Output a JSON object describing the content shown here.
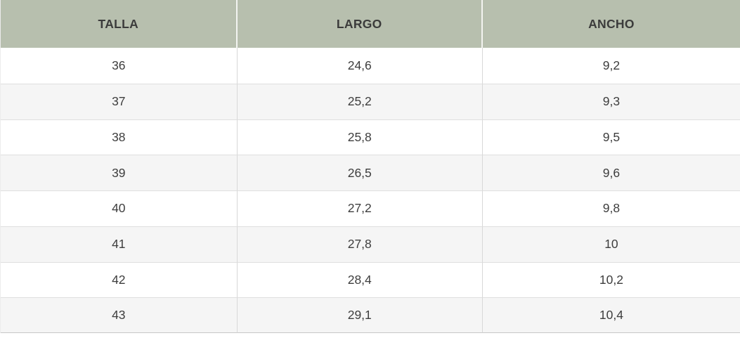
{
  "table": {
    "columns": [
      "TALLA",
      "LARGO",
      "ANCHO"
    ],
    "rows": [
      {
        "talla": "36",
        "largo": "24,6",
        "ancho": "9,2"
      },
      {
        "talla": "37",
        "largo": "25,2",
        "ancho": "9,3"
      },
      {
        "talla": "38",
        "largo": "25,8",
        "ancho": "9,5"
      },
      {
        "talla": "39",
        "largo": "26,5",
        "ancho": "9,6"
      },
      {
        "talla": "40",
        "largo": "27,2",
        "ancho": "9,8"
      },
      {
        "talla": "41",
        "largo": "27,8",
        "ancho": "10"
      },
      {
        "talla": "42",
        "largo": "28,4",
        "ancho": "10,2"
      },
      {
        "talla": "43",
        "largo": "29,1",
        "ancho": "10,4"
      }
    ]
  },
  "colors": {
    "header_bg": "#b7bfae",
    "row_bg": "#ffffff",
    "row_alt_bg": "#f5f5f5",
    "text": "#3d3d3d",
    "row_divider": "#dfdfdf",
    "column_divider": "#d8d8d8",
    "header_gap": "#f3f4f1",
    "bottom_border": "#c7c7c7"
  },
  "chart_data": {
    "type": "table",
    "title": "",
    "columns": [
      "TALLA",
      "LARGO",
      "ANCHO"
    ],
    "rows": [
      [
        36,
        24.6,
        9.2
      ],
      [
        37,
        25.2,
        9.3
      ],
      [
        38,
        25.8,
        9.5
      ],
      [
        39,
        26.5,
        9.6
      ],
      [
        40,
        27.2,
        9.8
      ],
      [
        41,
        27.8,
        10
      ],
      [
        42,
        28.4,
        10.2
      ],
      [
        43,
        29.1,
        10.4
      ]
    ],
    "decimal_separator": ",",
    "layout": {
      "header_background": "#b7bfae",
      "zebra_striping": true,
      "grid": true
    }
  }
}
